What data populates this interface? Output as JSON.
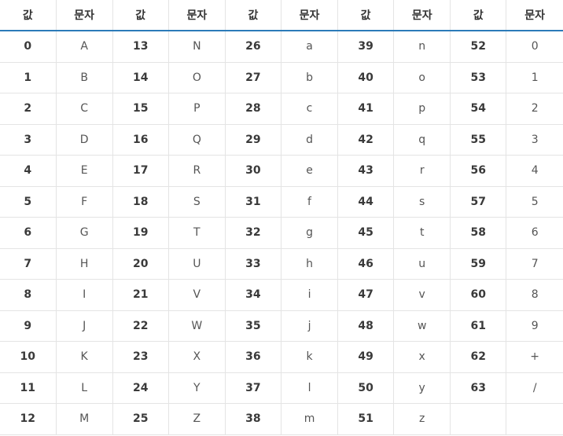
{
  "header": [
    "값",
    "문자",
    "값",
    "문자",
    "값",
    "문자",
    "값",
    "문자",
    "값",
    "문자"
  ],
  "rows": [
    [
      "0",
      "A",
      "13",
      "N",
      "26",
      "a",
      "39",
      "n",
      "52",
      "0"
    ],
    [
      "1",
      "B",
      "14",
      "O",
      "27",
      "b",
      "40",
      "o",
      "53",
      "1"
    ],
    [
      "2",
      "C",
      "15",
      "P",
      "28",
      "c",
      "41",
      "p",
      "54",
      "2"
    ],
    [
      "3",
      "D",
      "16",
      "Q",
      "29",
      "d",
      "42",
      "q",
      "55",
      "3"
    ],
    [
      "4",
      "E",
      "17",
      "R",
      "30",
      "e",
      "43",
      "r",
      "56",
      "4"
    ],
    [
      "5",
      "F",
      "18",
      "S",
      "31",
      "f",
      "44",
      "s",
      "57",
      "5"
    ],
    [
      "6",
      "G",
      "19",
      "T",
      "32",
      "g",
      "45",
      "t",
      "58",
      "6"
    ],
    [
      "7",
      "H",
      "20",
      "U",
      "33",
      "h",
      "46",
      "u",
      "59",
      "7"
    ],
    [
      "8",
      "I",
      "21",
      "V",
      "34",
      "i",
      "47",
      "v",
      "60",
      "8"
    ],
    [
      "9",
      "J",
      "22",
      "W",
      "35",
      "j",
      "48",
      "w",
      "61",
      "9"
    ],
    [
      "10",
      "K",
      "23",
      "X",
      "36",
      "k",
      "49",
      "x",
      "62",
      "+"
    ],
    [
      "11",
      "L",
      "24",
      "Y",
      "37",
      "l",
      "50",
      "y",
      "63",
      "/"
    ],
    [
      "12",
      "M",
      "25",
      "Z",
      "38",
      "m",
      "51",
      "z",
      "",
      ""
    ]
  ]
}
